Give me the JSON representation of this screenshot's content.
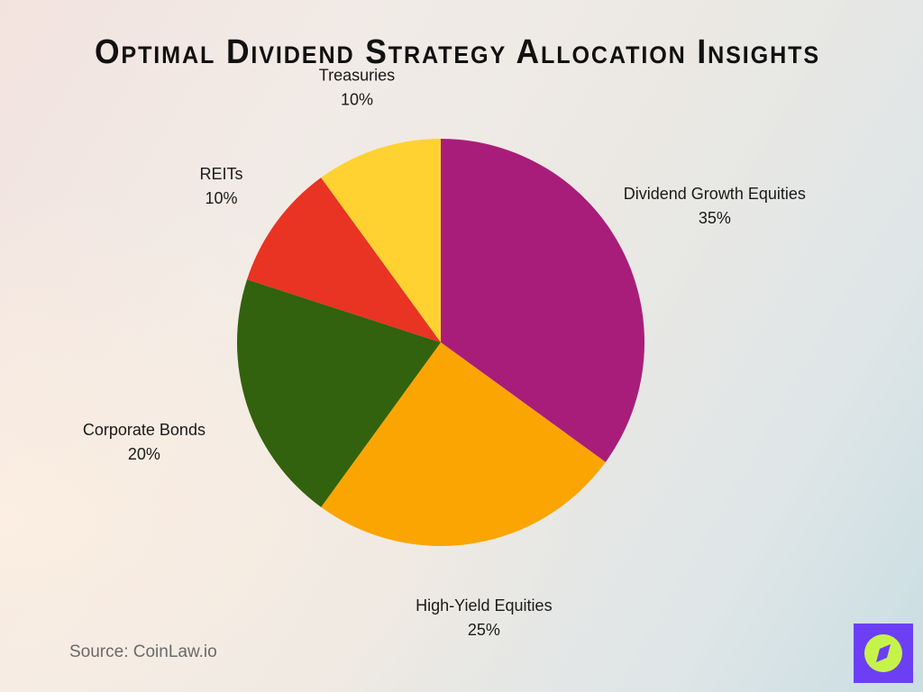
{
  "title": "Optimal Dividend Strategy Allocation Insights",
  "source": "Source: CoinLaw.io",
  "logo_icon": "compass-icon",
  "chart_data": {
    "type": "pie",
    "title": "Optimal Dividend Strategy Allocation Insights",
    "start": "top",
    "direction": "clockwise",
    "slices": [
      {
        "label": "Dividend Growth Equities",
        "value": 35,
        "value_label": "35%",
        "color": "#A91D7A"
      },
      {
        "label": "High-Yield Equities",
        "value": 25,
        "value_label": "25%",
        "color": "#FBA502"
      },
      {
        "label": "Corporate Bonds",
        "value": 20,
        "value_label": "20%",
        "color": "#32620E"
      },
      {
        "label": "REITs",
        "value": 10,
        "value_label": "10%",
        "color": "#E93323"
      },
      {
        "label": "Treasuries",
        "value": 10,
        "value_label": "10%",
        "color": "#FFD232"
      }
    ]
  }
}
